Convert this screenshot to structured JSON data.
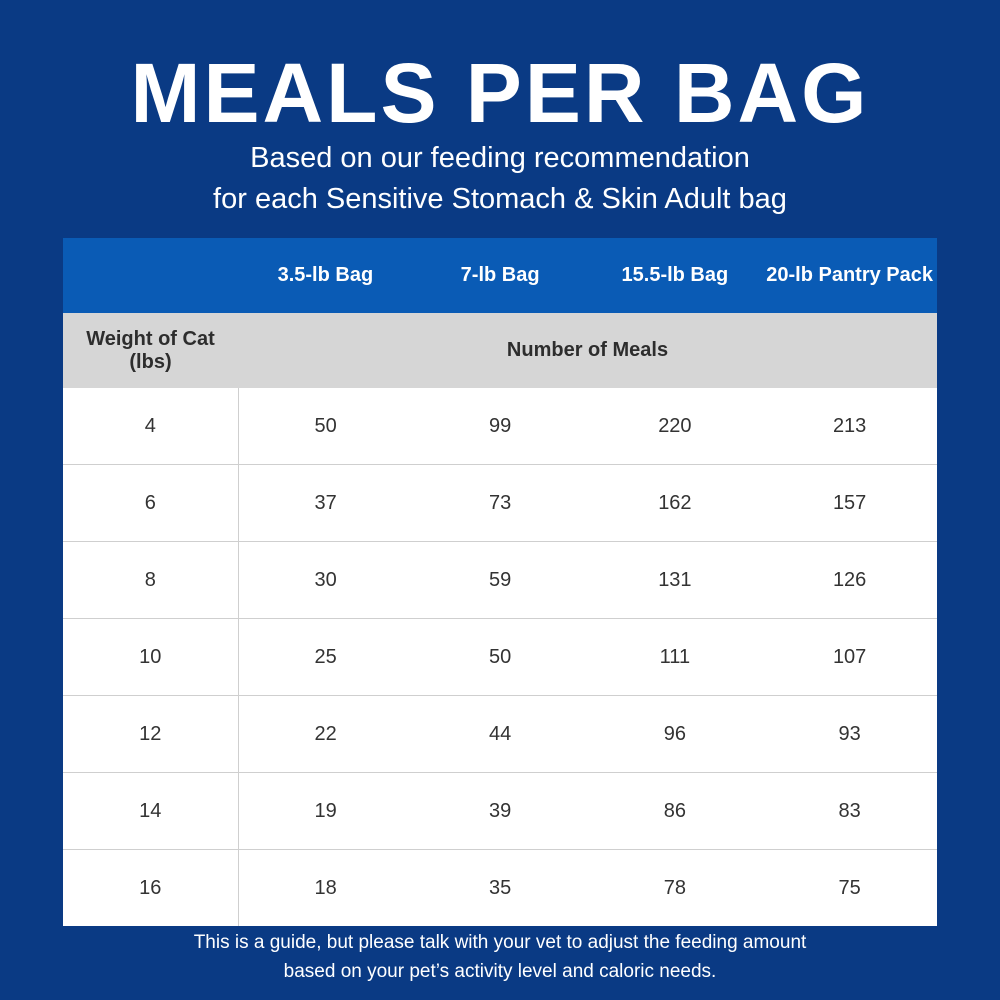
{
  "title": "MEALS PER BAG",
  "subtitle": {
    "line1": "Based on our feeding recommendation",
    "line2": "for each Sensitive Stomach & Skin Adult bag"
  },
  "table": {
    "headers": [
      "",
      "3.5-lb Bag",
      "7-lb Bag",
      "15.5-lb Bag",
      "20-lb Pantry Pack"
    ],
    "subheader": {
      "row_label": "Weight of Cat (lbs)",
      "column_label": "Number of Meals"
    },
    "rows": [
      {
        "weight": "4",
        "values": [
          "50",
          "99",
          "220",
          "213"
        ]
      },
      {
        "weight": "6",
        "values": [
          "37",
          "73",
          "162",
          "157"
        ]
      },
      {
        "weight": "8",
        "values": [
          "30",
          "59",
          "131",
          "126"
        ]
      },
      {
        "weight": "10",
        "values": [
          "25",
          "50",
          "111",
          "107"
        ]
      },
      {
        "weight": "12",
        "values": [
          "22",
          "44",
          "96",
          "93"
        ]
      },
      {
        "weight": "14",
        "values": [
          "19",
          "39",
          "86",
          "83"
        ]
      },
      {
        "weight": "16",
        "values": [
          "18",
          "35",
          "78",
          "75"
        ]
      }
    ]
  },
  "footer": {
    "line1": "This is a guide, but please talk with your vet to adjust the feeding amount",
    "line2": "based on your pet’s activity level and caloric needs."
  },
  "colors": {
    "background": "#0a3a84",
    "header_blue": "#0a5bb5",
    "subheader_gray": "#d6d6d6"
  }
}
